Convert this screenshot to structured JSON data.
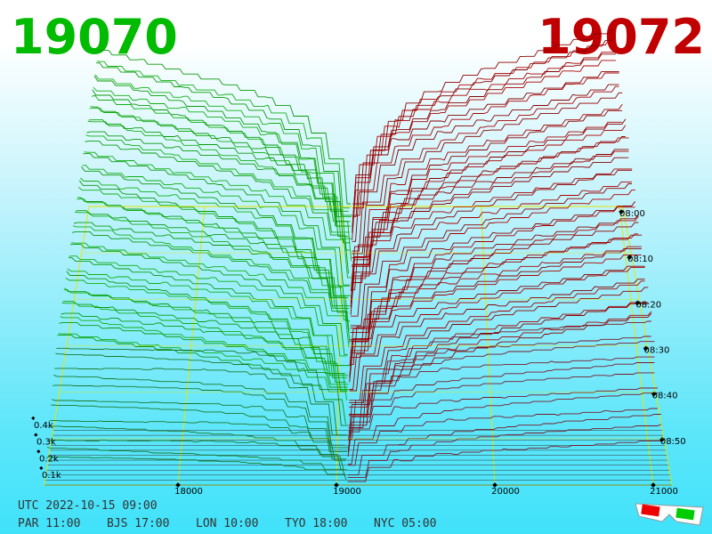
{
  "header": {
    "bid": "19070",
    "ask": "19072"
  },
  "axis": {
    "price_ticks": [
      18000,
      19000,
      20000,
      21000
    ],
    "depth_ticks": [
      "0.1k",
      "0.2k",
      "0.3k",
      "0.4k"
    ],
    "time_ticks": [
      "08:00",
      "08:10",
      "08:20",
      "08:30",
      "08:40",
      "08:50"
    ]
  },
  "footer": {
    "utc": "UTC 2022-10-15 09:00",
    "zones": [
      "PAR 11:00",
      "BJS 17:00",
      "LON 10:00",
      "TYO 18:00",
      "NYC 05:00"
    ]
  }
}
